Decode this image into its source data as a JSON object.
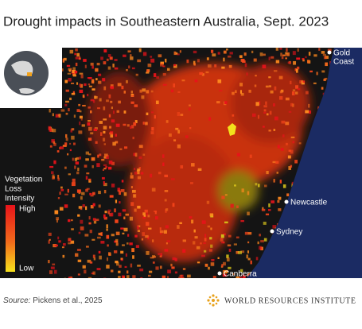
{
  "title": "Drought impacts in Southeastern Australia, Sept. 2023",
  "legend": {
    "title_lines": [
      "Vegetation",
      "Loss",
      "Intensity"
    ],
    "high": "High",
    "low": "Low"
  },
  "places": [
    {
      "name_lines": [
        "Gold",
        "Coast"
      ]
    },
    {
      "name_lines": [
        "Newcastle"
      ]
    },
    {
      "name_lines": [
        "Sydney"
      ]
    },
    {
      "name_lines": [
        "Canberra"
      ]
    }
  ],
  "source": {
    "label": "Source:",
    "text": "Pickens et al., 2025"
  },
  "logo": "WORLD RESOURCES INSTITUTE"
}
